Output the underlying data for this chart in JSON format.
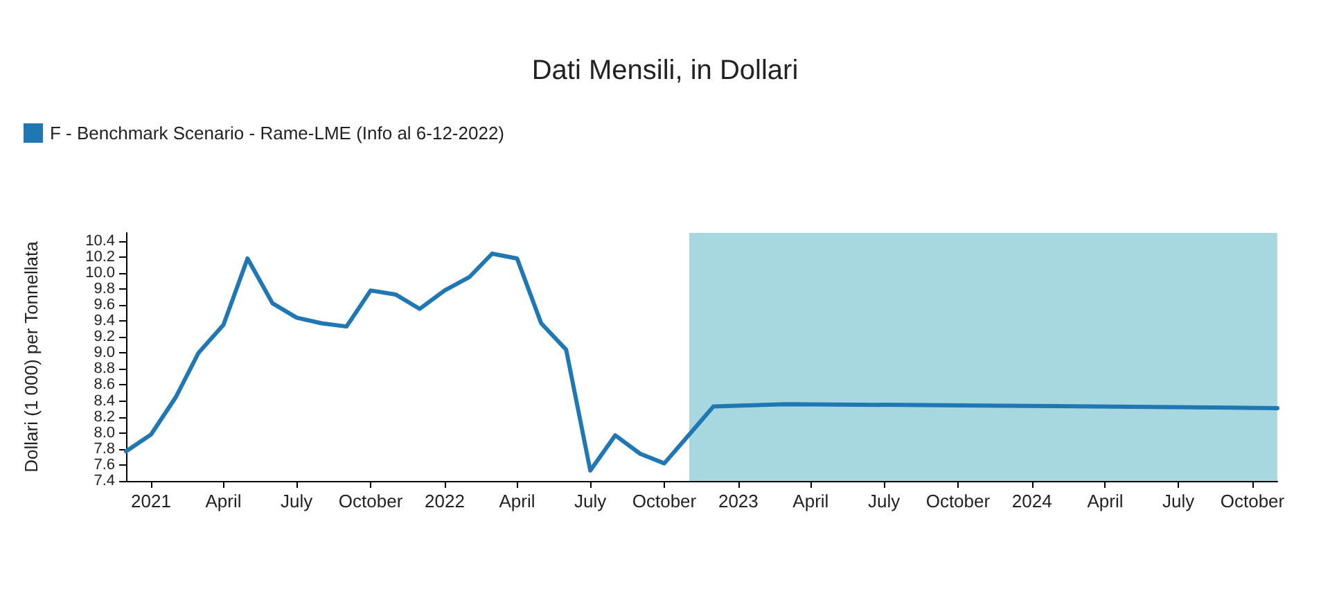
{
  "chart_data": {
    "type": "line",
    "title": "Dati Mensili, in Dollari",
    "ylabel": "Dollari (1 000) per Tonnellata",
    "x": [
      "2020-12",
      "2021-01",
      "2021-02",
      "2021-03",
      "2021-04",
      "2021-05",
      "2021-06",
      "2021-07",
      "2021-08",
      "2021-09",
      "2021-10",
      "2021-11",
      "2021-12",
      "2022-01",
      "2022-02",
      "2022-03",
      "2022-04",
      "2022-05",
      "2022-06",
      "2022-07",
      "2022-08",
      "2022-09",
      "2022-10",
      "2022-11",
      "2022-12",
      "2023-03",
      "2023-12",
      "2024-11"
    ],
    "series": [
      {
        "name": "F - Benchmark Scenario - Rame-LME (Info al 6-12-2022)",
        "color": "#1f77b4",
        "values": [
          7.77,
          7.98,
          8.45,
          9.0,
          9.35,
          10.18,
          9.62,
          9.44,
          9.37,
          9.33,
          9.78,
          9.73,
          9.55,
          9.78,
          9.95,
          10.24,
          10.18,
          9.37,
          9.04,
          7.53,
          7.97,
          7.74,
          7.62,
          7.98,
          8.33,
          8.36,
          8.34,
          8.31
        ]
      }
    ],
    "xlim": [
      "2020-12",
      "2024-11"
    ],
    "xticks": [
      {
        "value": "2021-01",
        "label": "2021"
      },
      {
        "value": "2021-04",
        "label": "April"
      },
      {
        "value": "2021-07",
        "label": "July"
      },
      {
        "value": "2021-10",
        "label": "October"
      },
      {
        "value": "2022-01",
        "label": "2022"
      },
      {
        "value": "2022-04",
        "label": "April"
      },
      {
        "value": "2022-07",
        "label": "July"
      },
      {
        "value": "2022-10",
        "label": "October"
      },
      {
        "value": "2023-01",
        "label": "2023"
      },
      {
        "value": "2023-04",
        "label": "April"
      },
      {
        "value": "2023-07",
        "label": "July"
      },
      {
        "value": "2023-10",
        "label": "October"
      },
      {
        "value": "2024-01",
        "label": "2024"
      },
      {
        "value": "2024-04",
        "label": "April"
      },
      {
        "value": "2024-07",
        "label": "July"
      },
      {
        "value": "2024-10",
        "label": "October"
      }
    ],
    "ylim": [
      7.4,
      10.5
    ],
    "yticks": [
      7.4,
      7.6,
      7.8,
      {
        "value": 8,
        "label": "8.0"
      },
      8.2,
      8.4,
      8.6,
      8.8,
      {
        "value": 9,
        "label": "9.0"
      },
      9.2,
      9.4,
      9.6,
      9.8,
      {
        "value": 10,
        "label": "10.0"
      },
      10.2,
      10.4
    ],
    "bands": [
      {
        "axis": "x",
        "from": "2022-11",
        "to": "2024-11",
        "color": "#a8d8df"
      }
    ],
    "grid": false,
    "legend": "top left"
  }
}
